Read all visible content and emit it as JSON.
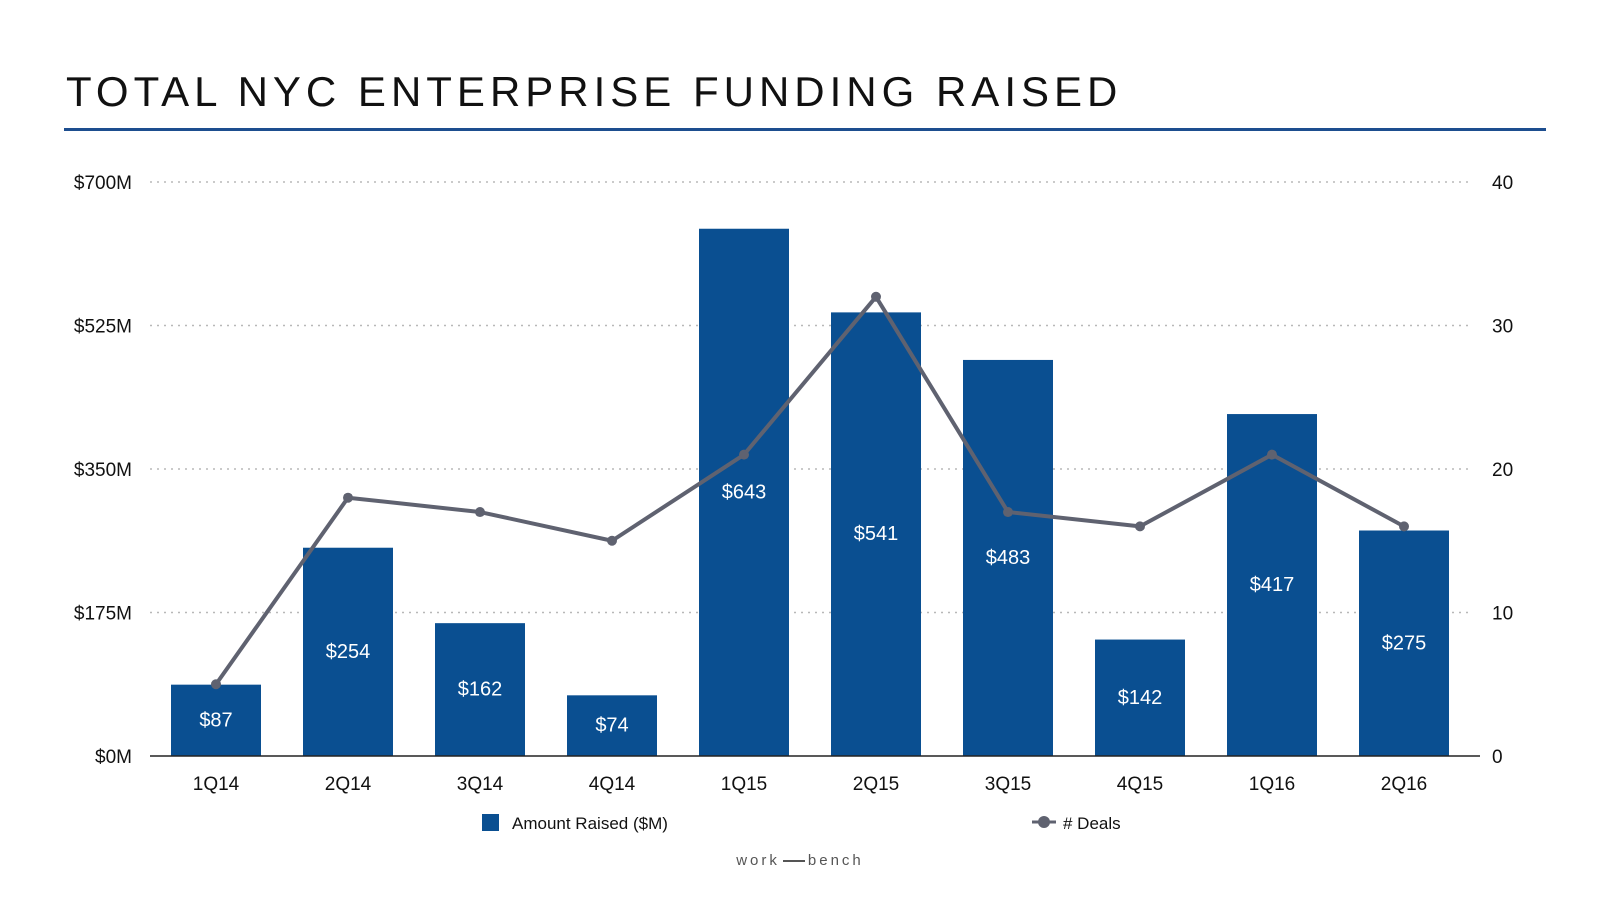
{
  "title": "TOTAL NYC ENTERPRISE FUNDING RAISED",
  "colors": {
    "bar": "#0a4f91",
    "line": "#5f6270",
    "rule": "#1d4e8f",
    "grid": "#b8b8b8"
  },
  "chart_data": {
    "type": "bar",
    "categories": [
      "1Q14",
      "2Q14",
      "3Q14",
      "4Q14",
      "1Q15",
      "2Q15",
      "3Q15",
      "4Q15",
      "1Q16",
      "2Q16"
    ],
    "series": [
      {
        "name": "Amount Raised ($M)",
        "type": "bar",
        "axis": "left",
        "values": [
          87,
          254,
          162,
          74,
          643,
          541,
          483,
          142,
          417,
          275
        ],
        "labels": [
          "$87",
          "$254",
          "$162",
          "$74",
          "$643",
          "$541",
          "$483",
          "$142",
          "$417",
          "$275"
        ]
      },
      {
        "name": "# Deals",
        "type": "line",
        "axis": "right",
        "values": [
          5,
          18,
          17,
          15,
          21,
          32,
          17,
          16,
          21,
          16
        ]
      }
    ],
    "y_left": {
      "ylim": [
        0,
        700
      ],
      "ticks": [
        0,
        175,
        350,
        525,
        700
      ],
      "tick_labels": [
        "$0M",
        "$175M",
        "$350M",
        "$525M",
        "$700M"
      ]
    },
    "y_right": {
      "ylim": [
        0,
        40
      ],
      "ticks": [
        0,
        10,
        20,
        30,
        40
      ],
      "tick_labels": [
        "0",
        "10",
        "20",
        "30",
        "40"
      ]
    },
    "grid": true,
    "legend_position": "bottom"
  },
  "footer": {
    "left": "work",
    "right": "bench"
  }
}
